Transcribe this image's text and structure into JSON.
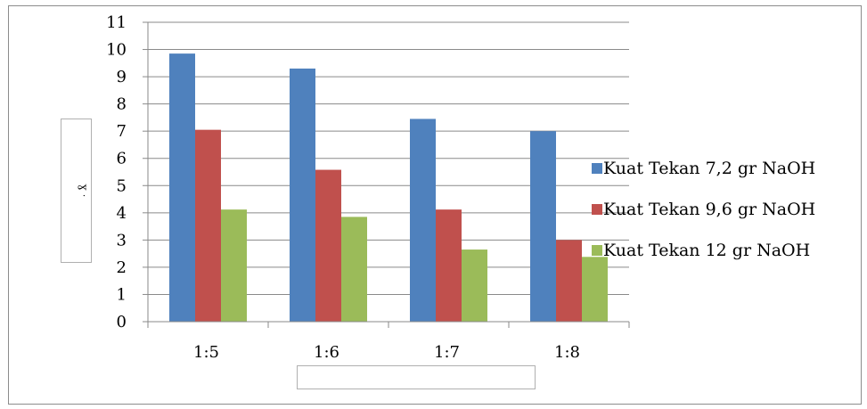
{
  "chart_data": {
    "type": "bar",
    "categories": [
      "1:5",
      "1:6",
      "1:7",
      "1:8"
    ],
    "series": [
      {
        "name": "Kuat Tekan 7,2 gr NaOH",
        "color": "#4f81bd",
        "values": [
          9.85,
          9.3,
          7.45,
          7.0
        ]
      },
      {
        "name": "Kuat Tekan 9,6 gr NaOH",
        "color": "#c0504d",
        "values": [
          7.05,
          5.58,
          4.12,
          3.0
        ]
      },
      {
        "name": "Kuat Tekan 12 gr NaOH",
        "color": "#9bbb59",
        "values": [
          4.12,
          3.85,
          2.65,
          2.38
        ]
      }
    ],
    "ylim": [
      0,
      11
    ],
    "yticks": [
      "0",
      "1",
      "2",
      "3",
      "4",
      "5",
      "6",
      "7",
      "8",
      "9",
      "10",
      "11"
    ],
    "grid": true,
    "legend_position": "right",
    "xlabel": "",
    "ylabel": "ɣ ˑ"
  }
}
